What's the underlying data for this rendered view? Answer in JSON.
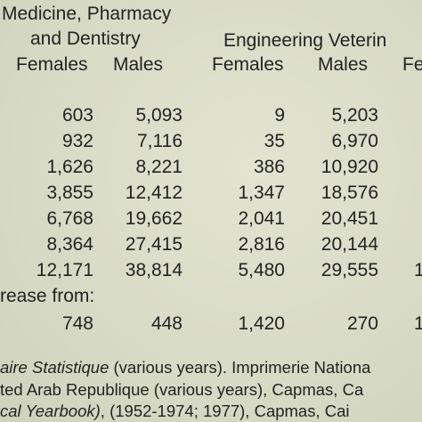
{
  "header": {
    "group1_line1": "Medicine, Pharmacy",
    "group1_line2": "and Dentistry",
    "group2_line1": "Engineering Veterin",
    "col_females_1": "Females",
    "col_males_1": "Males",
    "col_females_2": "Females",
    "col_males_2": "Males",
    "col_partial": "Fe"
  },
  "rows": [
    {
      "c1": "603",
      "c2": "5,093",
      "c3": "9",
      "c4": "5,203"
    },
    {
      "c1": "932",
      "c2": "7,116",
      "c3": "35",
      "c4": "6,970"
    },
    {
      "c1": "1,626",
      "c2": "8,221",
      "c3": "386",
      "c4": "10,920"
    },
    {
      "c1": "3,855",
      "c2": "12,412",
      "c3": "1,347",
      "c4": "18,576"
    },
    {
      "c1": "6,768",
      "c2": "19,662",
      "c3": "2,041",
      "c4": "20,451"
    },
    {
      "c1": "8,364",
      "c2": "27,415",
      "c3": "2,816",
      "c4": "20,144"
    },
    {
      "c1": "12,171",
      "c2": "38,814",
      "c3": "5,480",
      "c4": "29,555",
      "c5": "1"
    }
  ],
  "increase": {
    "label": "rease from:",
    "c1": "748",
    "c2": "448",
    "c3": "1,420",
    "c4": "270",
    "c5": "1"
  },
  "footnotes": {
    "line1_italic": "aire Statistique",
    "line1_rest": " (various years). Imprimerie Nationa",
    "line2": "ted Arab Republique (various years), Capmas, Ca",
    "line3_italic": "cal Yearbook)",
    "line3_rest": ", (1952-1974; 1977), Capmas, Cai"
  }
}
